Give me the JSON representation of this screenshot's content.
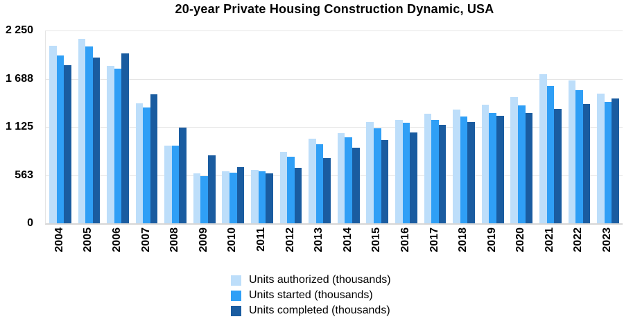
{
  "chart_data": {
    "type": "bar",
    "title": "20-year Private Housing Construction Dynamic, USA",
    "categories": [
      "2004",
      "2005",
      "2006",
      "2007",
      "2008",
      "2009",
      "2010",
      "2011",
      "2012",
      "2013",
      "2014",
      "2015",
      "2016",
      "2017",
      "2018",
      "2019",
      "2020",
      "2021",
      "2022",
      "2023"
    ],
    "series": [
      {
        "name": "Units authorized (thousands)",
        "color": "#BDDEFA",
        "values": [
          2070,
          2155,
          1839,
          1398,
          905,
          583,
          605,
          624,
          830,
          991,
          1052,
          1183,
          1207,
          1282,
          1330,
          1386,
          1471,
          1737,
          1665,
          1511
        ]
      },
      {
        "name": "Units started (thousands)",
        "color": "#2F9FF6",
        "values": [
          1956,
          2068,
          1801,
          1355,
          906,
          554,
          587,
          609,
          781,
          925,
          1003,
          1112,
          1174,
          1203,
          1250,
          1290,
          1380,
          1601,
          1553,
          1413
        ]
      },
      {
        "name": "Units completed (thousands)",
        "color": "#1A5CA0",
        "values": [
          1842,
          1931,
          1979,
          1503,
          1120,
          794,
          652,
          585,
          649,
          764,
          884,
          968,
          1060,
          1153,
          1185,
          1256,
          1289,
          1337,
          1392,
          1453
        ]
      }
    ],
    "ylim": [
      0,
      2250
    ],
    "yticks": [
      {
        "value": 0,
        "label": "0"
      },
      {
        "value": 562.5,
        "label": "563"
      },
      {
        "value": 1125,
        "label": "1 125"
      },
      {
        "value": 1687.5,
        "label": "1 688"
      },
      {
        "value": 2250,
        "label": "2 250"
      }
    ],
    "grid": true,
    "legend_position": "bottom",
    "xlabel": "",
    "ylabel": "",
    "colors": {
      "gridline": "#E4E4E4",
      "baseline": "#D6D6D6",
      "text": "#000000",
      "background": "#FFFFFF"
    }
  }
}
